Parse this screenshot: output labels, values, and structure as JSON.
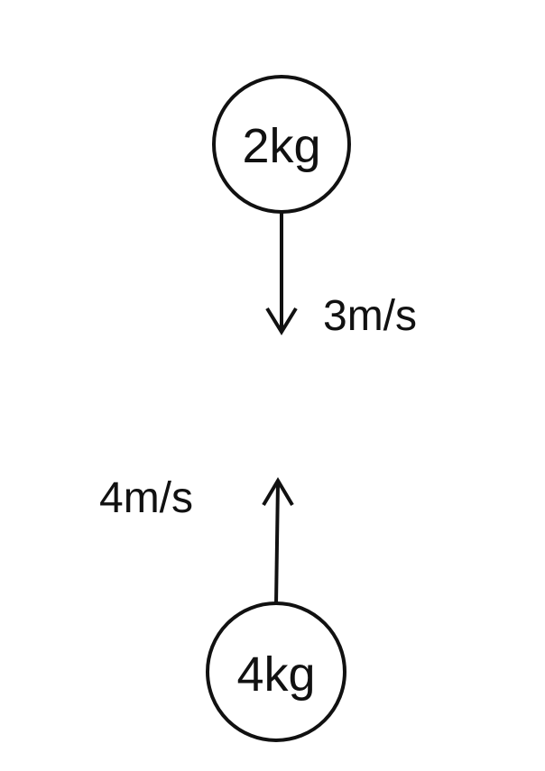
{
  "diagram": {
    "top_body": {
      "mass_label": "2kg",
      "velocity_label": "3m/s",
      "direction": "down"
    },
    "bottom_body": {
      "mass_label": "4kg",
      "velocity_label": "4m/s",
      "direction": "up"
    },
    "line_color": "#111111",
    "background_color": "#ffffff"
  }
}
